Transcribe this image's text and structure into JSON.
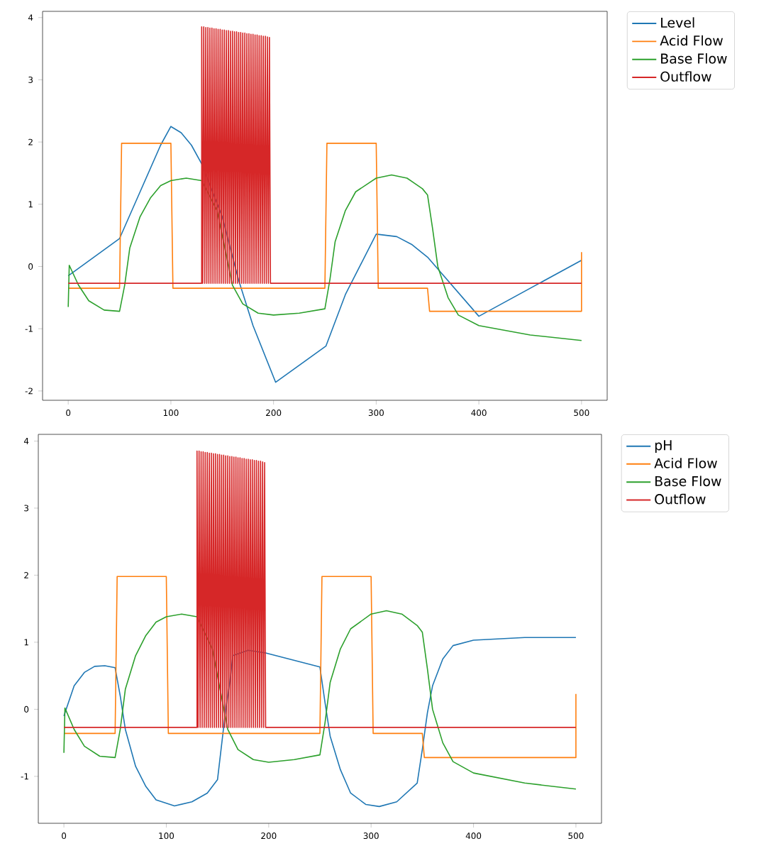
{
  "chart_data": [
    {
      "type": "line",
      "xlim": [
        -25,
        525
      ],
      "ylim": [
        -2.15,
        4.1
      ],
      "xticks": [
        0,
        100,
        200,
        300,
        400,
        500
      ],
      "yticks": [
        -2,
        -1,
        0,
        1,
        2,
        3,
        4
      ],
      "legend": "top right",
      "marker": "none",
      "line_style": "solid",
      "series": [
        {
          "name": "Level",
          "color": "#1f77b4",
          "x": [
            0,
            50,
            70,
            90,
            100,
            110,
            120,
            130,
            150,
            166,
            180,
            202,
            251,
            270,
            300,
            320,
            335,
            350,
            400,
            500
          ],
          "values": [
            -0.15,
            0.45,
            1.2,
            1.95,
            2.25,
            2.15,
            1.95,
            1.65,
            0.8,
            -0.22,
            -0.95,
            -1.86,
            -1.28,
            -0.45,
            0.52,
            0.48,
            0.35,
            0.15,
            -0.8,
            0.1
          ]
        },
        {
          "name": "Acid Flow",
          "color": "#ff7f0e",
          "x": [
            0,
            50,
            52,
            100,
            102,
            250,
            252,
            300,
            302,
            350,
            352,
            500,
            500
          ],
          "values": [
            -0.35,
            -0.35,
            1.98,
            1.98,
            -0.35,
            -0.35,
            1.98,
            1.98,
            -0.35,
            -0.35,
            -0.72,
            -0.72,
            0.23
          ]
        },
        {
          "name": "Base Flow",
          "color": "#2ca02c",
          "x": [
            0,
            1,
            10,
            20,
            35,
            50,
            55,
            60,
            70,
            80,
            90,
            100,
            115,
            130,
            145,
            160,
            170,
            185,
            200,
            225,
            250,
            255,
            260,
            270,
            280,
            300,
            315,
            330,
            345,
            350,
            355,
            360,
            370,
            380,
            400,
            450,
            500
          ],
          "values": [
            -0.65,
            0.02,
            -0.3,
            -0.55,
            -0.7,
            -0.72,
            -0.3,
            0.3,
            0.8,
            1.1,
            1.3,
            1.38,
            1.42,
            1.38,
            0.9,
            -0.3,
            -0.6,
            -0.75,
            -0.78,
            -0.75,
            -0.68,
            -0.2,
            0.4,
            0.9,
            1.2,
            1.42,
            1.47,
            1.42,
            1.25,
            1.15,
            0.6,
            0.0,
            -0.5,
            -0.78,
            -0.95,
            -1.1,
            -1.19
          ]
        },
        {
          "name": "Outflow",
          "color": "#d62728",
          "x": [
            0,
            130,
            130,
            131,
            132,
            133,
            134,
            135,
            136,
            137,
            138,
            139,
            140,
            141,
            142,
            143,
            144,
            145,
            146,
            147,
            148,
            149,
            150,
            151,
            152,
            153,
            154,
            155,
            156,
            157,
            158,
            159,
            160,
            161,
            162,
            163,
            164,
            165,
            166,
            167,
            168,
            169,
            170,
            171,
            172,
            173,
            174,
            175,
            176,
            177,
            178,
            179,
            180,
            181,
            182,
            183,
            184,
            185,
            186,
            187,
            188,
            189,
            190,
            191,
            192,
            193,
            194,
            195,
            196,
            197,
            500
          ],
          "values": [
            -0.27,
            -0.27,
            3.85,
            -0.27,
            3.85,
            -0.27,
            3.84,
            -0.27,
            3.84,
            -0.27,
            3.83,
            -0.27,
            3.83,
            -0.27,
            3.82,
            -0.27,
            3.82,
            -0.27,
            3.81,
            -0.27,
            3.81,
            -0.27,
            3.8,
            -0.27,
            3.8,
            -0.27,
            3.79,
            -0.27,
            3.79,
            -0.27,
            3.78,
            -0.27,
            3.78,
            -0.27,
            3.77,
            -0.27,
            3.77,
            -0.27,
            3.76,
            -0.27,
            3.76,
            -0.27,
            3.75,
            -0.27,
            3.75,
            -0.27,
            3.74,
            -0.27,
            3.74,
            -0.27,
            3.73,
            -0.27,
            3.73,
            -0.27,
            3.72,
            -0.27,
            3.72,
            -0.27,
            3.71,
            -0.27,
            3.71,
            -0.27,
            3.7,
            -0.27,
            3.7,
            -0.27,
            3.69,
            -0.27,
            3.68,
            -0.27,
            -0.27
          ]
        }
      ]
    },
    {
      "type": "line",
      "xlim": [
        -25,
        525
      ],
      "ylim": [
        -1.7,
        4.1
      ],
      "xticks": [
        0,
        100,
        200,
        300,
        400,
        500
      ],
      "yticks": [
        -1,
        0,
        1,
        2,
        3,
        4
      ],
      "legend": "top right",
      "marker": "none",
      "line_style": "solid",
      "series": [
        {
          "name": "pH",
          "color": "#1f77b4",
          "x": [
            0,
            10,
            20,
            30,
            40,
            50,
            55,
            60,
            70,
            80,
            90,
            108,
            125,
            140,
            150,
            155,
            158,
            162,
            165,
            180,
            197,
            250,
            255,
            260,
            270,
            280,
            295,
            308,
            325,
            345,
            350,
            355,
            360,
            370,
            380,
            400,
            450,
            500
          ],
          "values": [
            -0.1,
            0.35,
            0.55,
            0.64,
            0.65,
            0.62,
            0.2,
            -0.3,
            -0.85,
            -1.15,
            -1.35,
            -1.44,
            -1.38,
            -1.25,
            -1.05,
            -0.4,
            0.0,
            0.4,
            0.8,
            0.88,
            0.84,
            0.63,
            0.1,
            -0.4,
            -0.9,
            -1.25,
            -1.42,
            -1.45,
            -1.38,
            -1.1,
            -0.6,
            -0.05,
            0.35,
            0.75,
            0.95,
            1.03,
            1.07,
            1.07
          ]
        },
        {
          "name": "Acid Flow",
          "color": "#ff7f0e",
          "x": [
            0,
            50,
            52,
            100,
            102,
            250,
            252,
            300,
            302,
            350,
            352,
            500,
            500
          ],
          "values": [
            -0.36,
            -0.36,
            1.98,
            1.98,
            -0.36,
            -0.36,
            1.98,
            1.98,
            -0.36,
            -0.36,
            -0.72,
            -0.72,
            0.23
          ]
        },
        {
          "name": "Base Flow",
          "color": "#2ca02c",
          "x": [
            0,
            1,
            10,
            20,
            35,
            50,
            55,
            60,
            70,
            80,
            90,
            100,
            115,
            130,
            145,
            160,
            170,
            185,
            200,
            225,
            250,
            255,
            260,
            270,
            280,
            300,
            315,
            330,
            345,
            350,
            355,
            360,
            370,
            380,
            400,
            450,
            500
          ],
          "values": [
            -0.65,
            0.02,
            -0.3,
            -0.55,
            -0.7,
            -0.72,
            -0.3,
            0.3,
            0.8,
            1.1,
            1.3,
            1.38,
            1.42,
            1.38,
            0.9,
            -0.3,
            -0.6,
            -0.75,
            -0.79,
            -0.75,
            -0.68,
            -0.2,
            0.4,
            0.9,
            1.2,
            1.42,
            1.47,
            1.42,
            1.25,
            1.15,
            0.6,
            0.0,
            -0.5,
            -0.78,
            -0.95,
            -1.1,
            -1.19
          ]
        },
        {
          "name": "Outflow",
          "color": "#d62728",
          "x": [
            0,
            130,
            130,
            131,
            132,
            133,
            134,
            135,
            136,
            137,
            138,
            139,
            140,
            141,
            142,
            143,
            144,
            145,
            146,
            147,
            148,
            149,
            150,
            151,
            152,
            153,
            154,
            155,
            156,
            157,
            158,
            159,
            160,
            161,
            162,
            163,
            164,
            165,
            166,
            167,
            168,
            169,
            170,
            171,
            172,
            173,
            174,
            175,
            176,
            177,
            178,
            179,
            180,
            181,
            182,
            183,
            184,
            185,
            186,
            187,
            188,
            189,
            190,
            191,
            192,
            193,
            194,
            195,
            196,
            197,
            500
          ],
          "values": [
            -0.27,
            -0.27,
            3.85,
            -0.27,
            3.85,
            -0.27,
            3.84,
            -0.27,
            3.84,
            -0.27,
            3.83,
            -0.27,
            3.83,
            -0.27,
            3.82,
            -0.27,
            3.82,
            -0.27,
            3.81,
            -0.27,
            3.81,
            -0.27,
            3.8,
            -0.27,
            3.8,
            -0.27,
            3.79,
            -0.27,
            3.79,
            -0.27,
            3.78,
            -0.27,
            3.78,
            -0.27,
            3.77,
            -0.27,
            3.77,
            -0.27,
            3.76,
            -0.27,
            3.76,
            -0.27,
            3.75,
            -0.27,
            3.75,
            -0.27,
            3.74,
            -0.27,
            3.74,
            -0.27,
            3.73,
            -0.27,
            3.73,
            -0.27,
            3.72,
            -0.27,
            3.72,
            -0.27,
            3.71,
            -0.27,
            3.71,
            -0.27,
            3.7,
            -0.27,
            3.7,
            -0.27,
            3.69,
            -0.27,
            3.68,
            -0.27,
            -0.27
          ]
        }
      ]
    }
  ]
}
